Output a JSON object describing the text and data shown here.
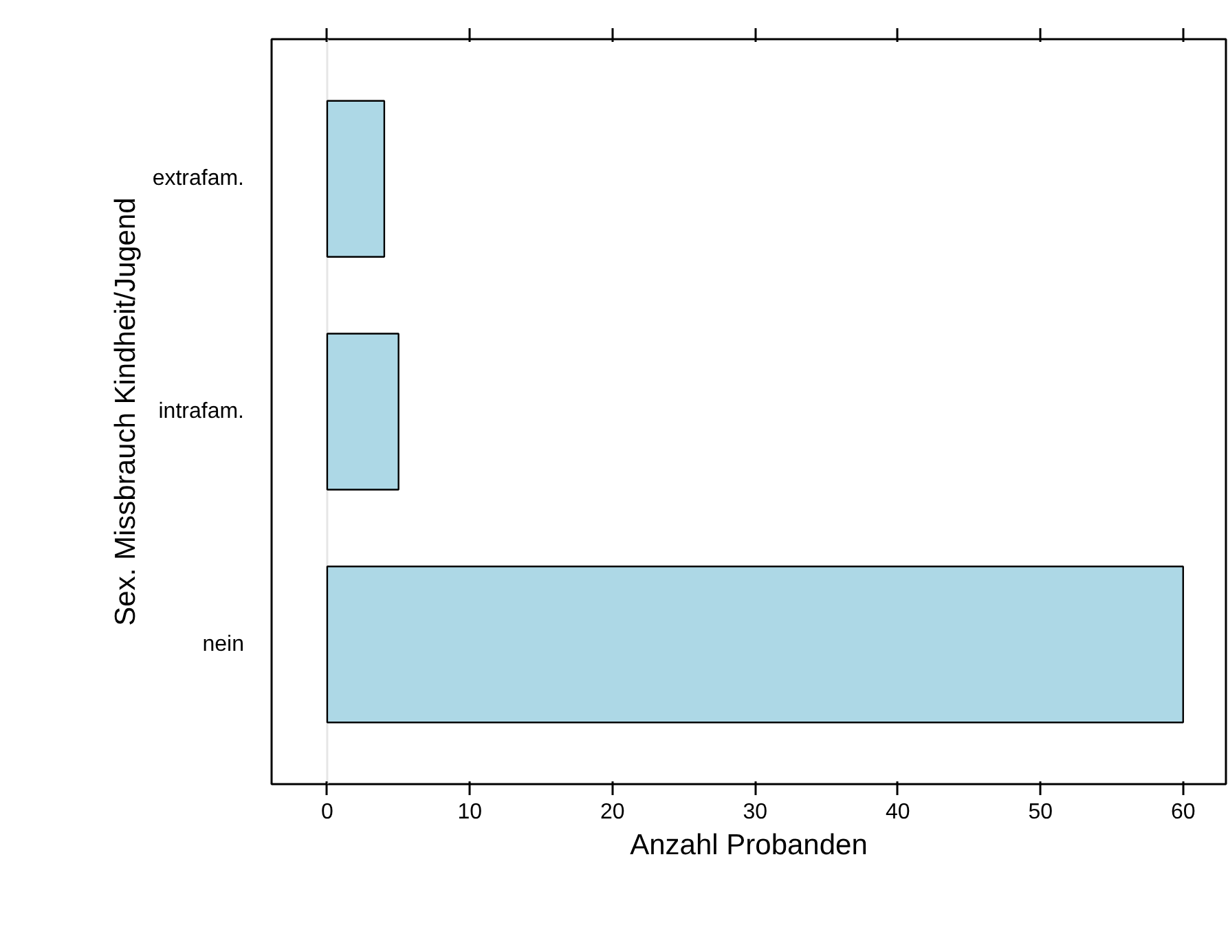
{
  "chart_data": {
    "type": "bar",
    "orientation": "horizontal",
    "xlabel": "Anzahl Probanden",
    "ylabel": "Sex. Missbrauch Kindheit/Jugend",
    "categories": [
      "extrafam.",
      "intrafam.",
      "nein"
    ],
    "values": [
      4,
      5,
      60
    ],
    "color": "#add8e6",
    "xlim": [
      -3.9,
      63
    ],
    "xticks": [
      0,
      10,
      20,
      30,
      40,
      50,
      60
    ],
    "ref_lines": [
      {
        "axis": "x",
        "value": 0,
        "label": null,
        "color": "#e6e6e6"
      }
    ],
    "grid": false
  }
}
